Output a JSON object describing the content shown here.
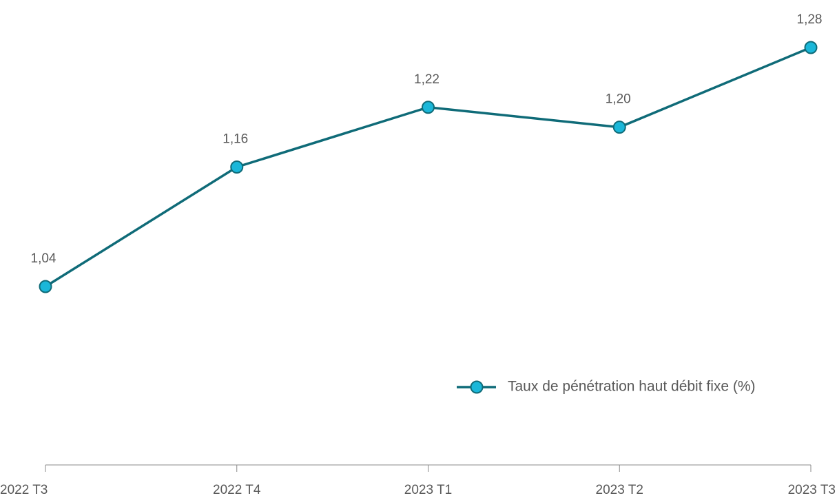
{
  "chart_data": {
    "type": "line",
    "categories": [
      "2022 T3",
      "2022 T4",
      "2023 T1",
      "2023 T2",
      "2023 T3"
    ],
    "series": [
      {
        "name": "Taux de pénétration haut débit fixe (%)",
        "color": "#0f6b78",
        "marker_color": "#1ab7d9",
        "values": [
          1.04,
          1.16,
          1.22,
          1.2,
          1.28
        ],
        "value_labels": [
          "1,04",
          "1,16",
          "1,22",
          "1,20",
          "1,28"
        ]
      }
    ],
    "legend": "right"
  }
}
